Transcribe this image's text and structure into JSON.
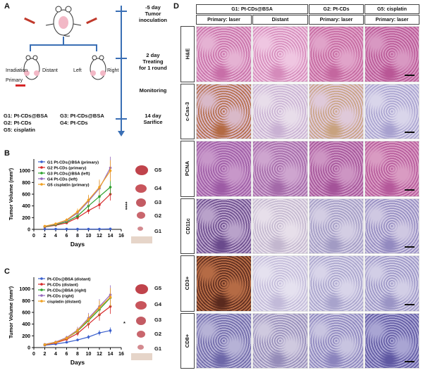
{
  "panels": {
    "a": {
      "letter": "A",
      "timeline": [
        "-5 day\nTumor\ninoculation",
        "2 day\nTreating\nfor 1 round",
        "Monitoring",
        "14 day\nSarifice"
      ],
      "mouse_labels": {
        "irradiation": "Irradiation",
        "distant": "Distant",
        "primary": "Primary",
        "left": "Left",
        "right": "Right"
      },
      "groups": [
        "G1: Pt-CDs@BSA",
        "G2: Pt-CDs",
        "G5: cisplatin",
        "G3: Pt-CDs@BSA",
        "G4: Pt-CDs"
      ]
    },
    "b": {
      "letter": "B",
      "significance": "****",
      "tumor_labels": [
        "G5",
        "G4",
        "G3",
        "G2",
        "G1"
      ]
    },
    "c": {
      "letter": "C",
      "significance": "*",
      "tumor_labels": [
        "G5",
        "G4",
        "G3",
        "G2",
        "G1"
      ]
    },
    "d": {
      "letter": "D",
      "col_groups": [
        "G1: Pt-CDs@BSA",
        "G2: Pt-CDs",
        "G5: cisplatin"
      ],
      "sub_heads": [
        "Primary: laser",
        "Distant",
        "Primary: laser",
        "Primary: laser"
      ],
      "rows": [
        "H&E",
        "c-Cas-3",
        "PCNA",
        "CD11c",
        "CD3+",
        "CD8+"
      ]
    }
  },
  "colors": {
    "blue": "#3a5fcd",
    "red": "#d62728",
    "green": "#2ca02c",
    "purple": "#9467bd",
    "orange": "#f0a020",
    "timeline": "#3a6fb5"
  },
  "chart_data": [
    {
      "type": "line",
      "panel": "B",
      "xlabel": "Days",
      "ylabel": "Tumor Volume (mm³)",
      "xlim": [
        0,
        16
      ],
      "ylim": [
        0,
        1200
      ],
      "xticks": [
        0,
        2,
        4,
        6,
        8,
        10,
        12,
        14,
        16
      ],
      "yticks": [
        0,
        200,
        400,
        600,
        800,
        1000
      ],
      "x": [
        2,
        4,
        6,
        8,
        10,
        12,
        14
      ],
      "series": [
        {
          "name": "G1 Pt-CDs@BSA (primary)",
          "color": "#3a5fcd",
          "values": [
            5,
            5,
            5,
            5,
            5,
            5,
            8
          ]
        },
        {
          "name": "G2 Pt-CDs (primary)",
          "color": "#d62728",
          "values": [
            40,
            70,
            110,
            200,
            320,
            420,
            600
          ]
        },
        {
          "name": "G3 Pt-CDs@BSA (left)",
          "color": "#2ca02c",
          "values": [
            45,
            80,
            130,
            230,
            400,
            560,
            720
          ]
        },
        {
          "name": "G4 Pt-CDs (left)",
          "color": "#9467bd",
          "values": [
            50,
            90,
            150,
            280,
            480,
            700,
            1050
          ]
        },
        {
          "name": "G5 cisplatin (primary)",
          "color": "#f0a020",
          "values": [
            55,
            95,
            160,
            300,
            500,
            720,
            1000
          ]
        }
      ]
    },
    {
      "type": "line",
      "panel": "C",
      "xlabel": "Days",
      "ylabel": "Tumor Volume (mm³)",
      "xlim": [
        0,
        16
      ],
      "ylim": [
        0,
        1200
      ],
      "xticks": [
        0,
        2,
        4,
        6,
        8,
        10,
        12,
        14,
        16
      ],
      "yticks": [
        0,
        200,
        400,
        600,
        800,
        1000
      ],
      "x": [
        2,
        4,
        6,
        8,
        10,
        12,
        14
      ],
      "series": [
        {
          "name": "Pt-CDs@BSA (distant)",
          "color": "#3a5fcd",
          "values": [
            40,
            60,
            90,
            130,
            180,
            250,
            290
          ]
        },
        {
          "name": "Pt-CDs (distant)",
          "color": "#d62728",
          "values": [
            45,
            80,
            140,
            240,
            400,
            560,
            700
          ]
        },
        {
          "name": "Pt-CDs@BSA (right)",
          "color": "#2ca02c",
          "values": [
            50,
            90,
            160,
            280,
            460,
            650,
            850
          ]
        },
        {
          "name": "Pt-CDs (right)",
          "color": "#9467bd",
          "values": [
            55,
            95,
            170,
            300,
            500,
            700,
            900
          ]
        },
        {
          "name": "cisplatin (distant)",
          "color": "#f0a020",
          "values": [
            50,
            90,
            160,
            290,
            480,
            680,
            860
          ]
        }
      ]
    }
  ]
}
